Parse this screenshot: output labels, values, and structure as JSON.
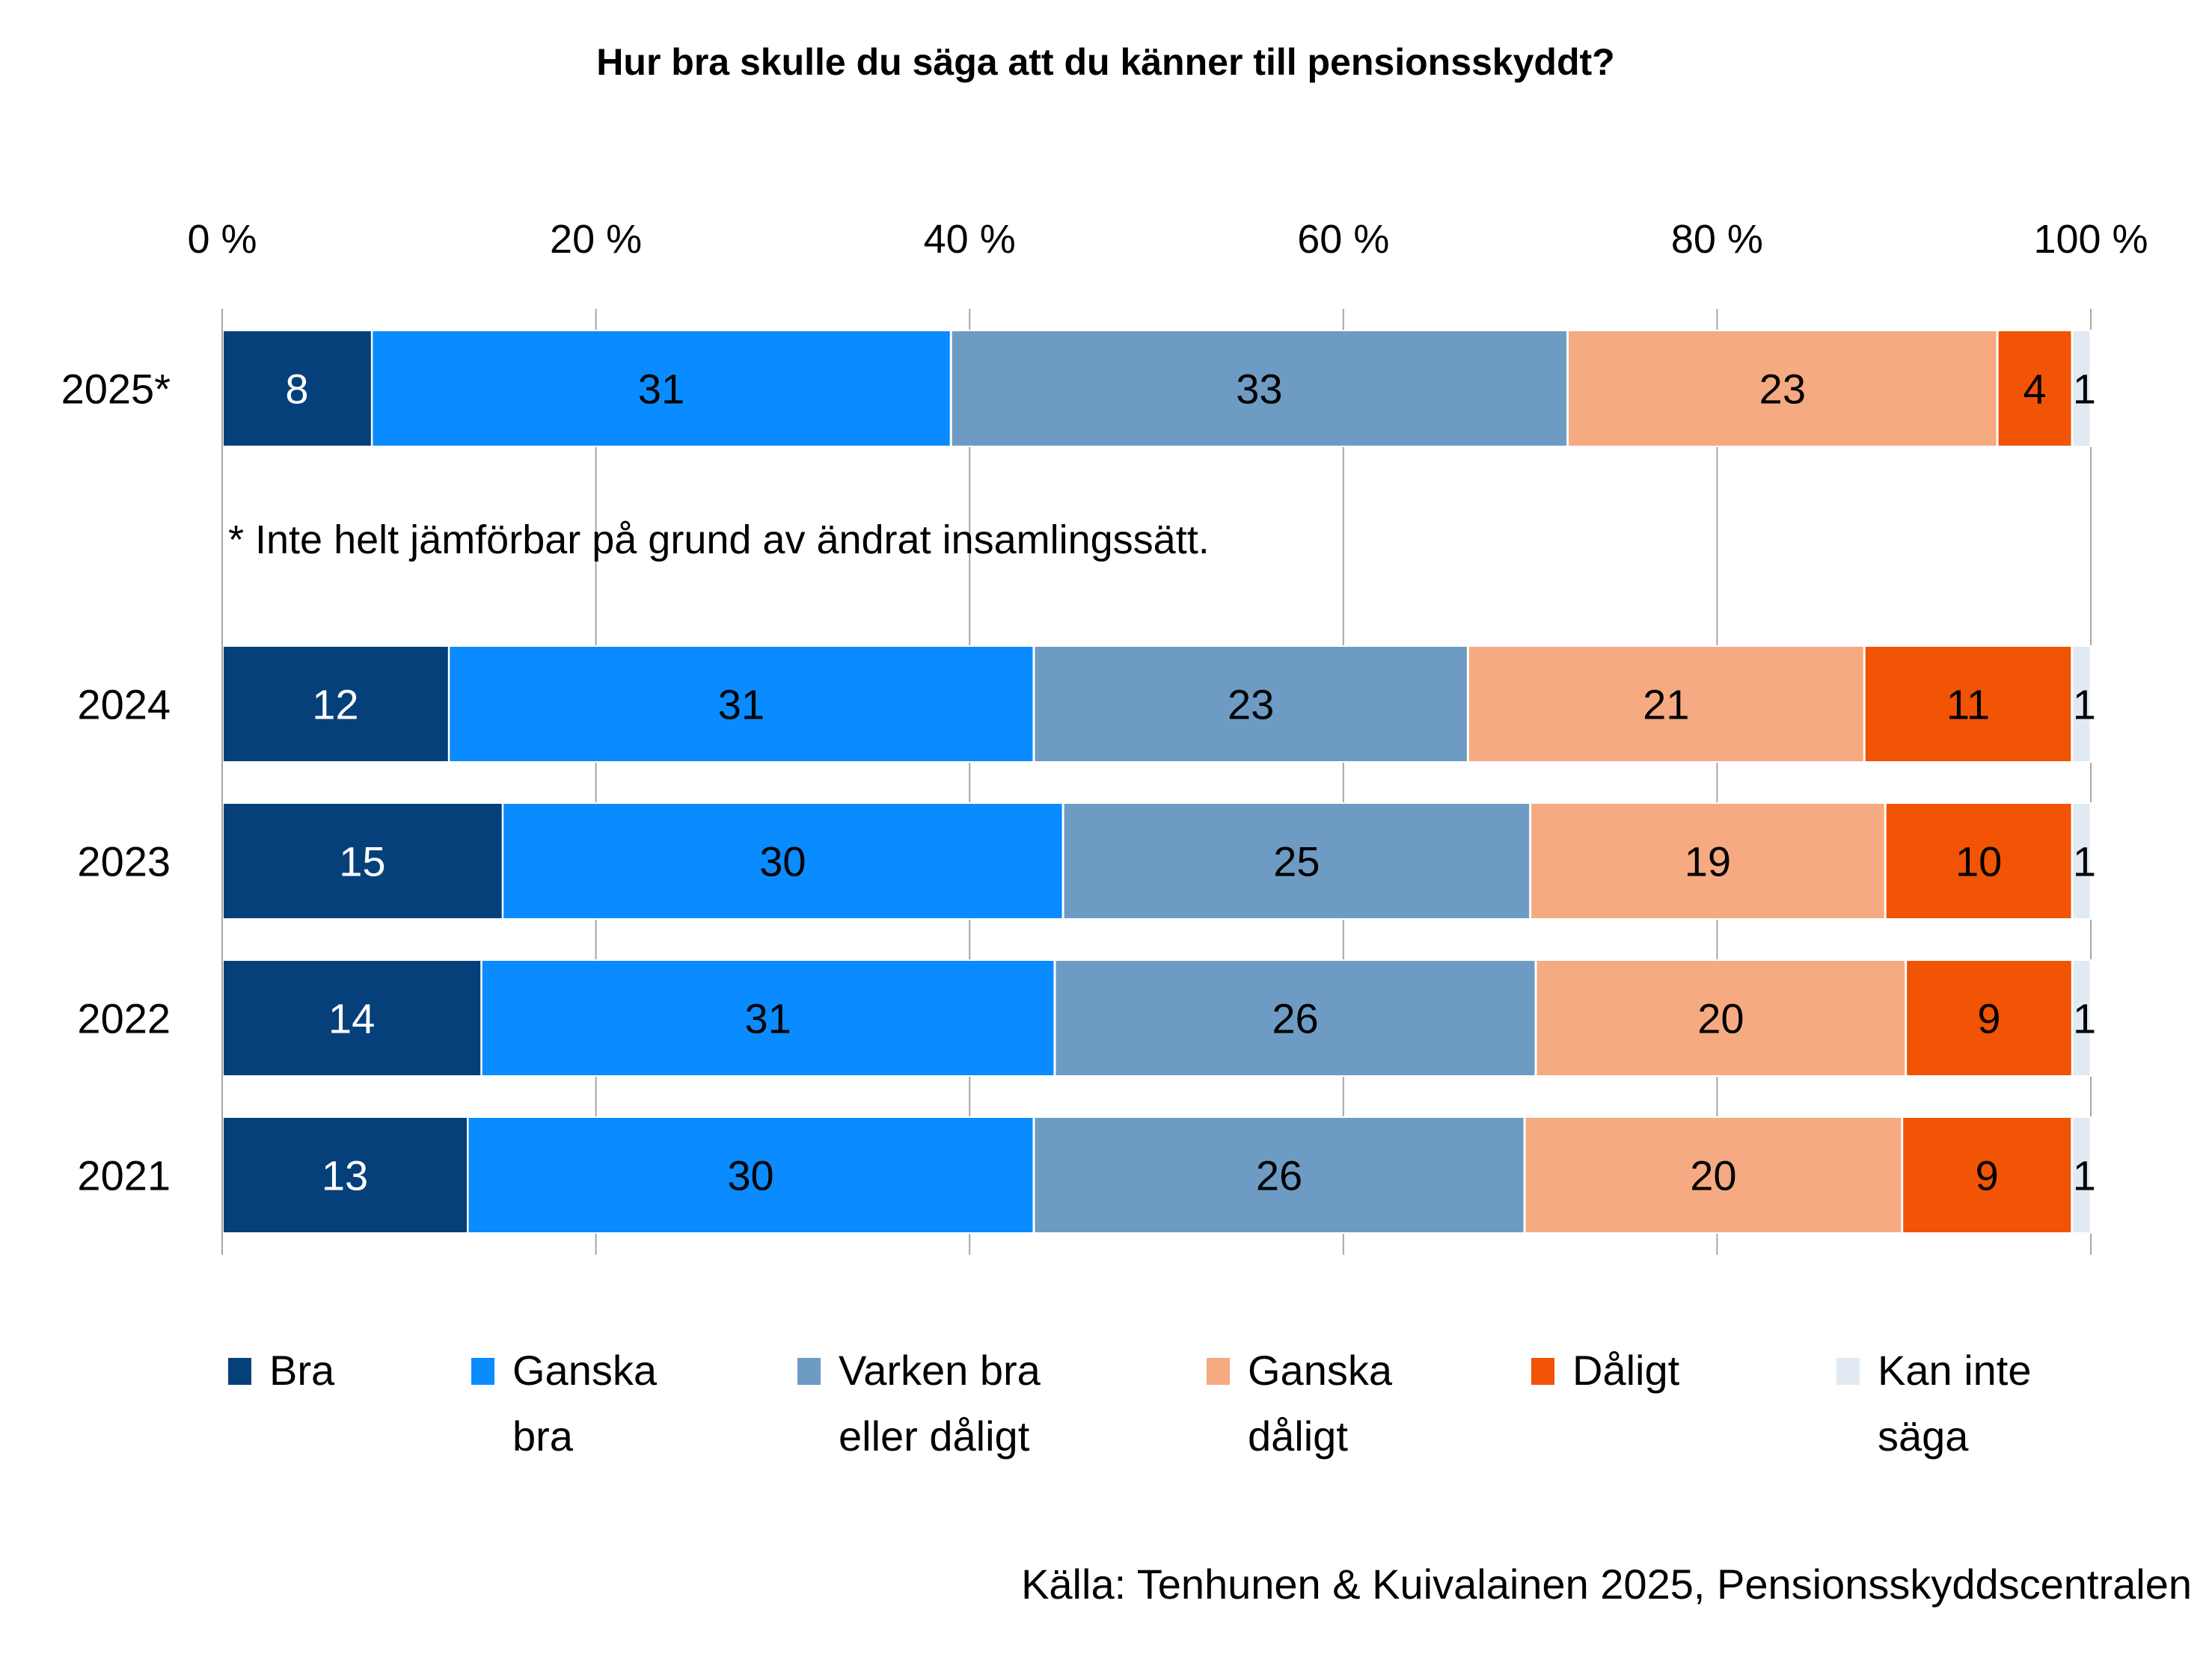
{
  "chart_data": {
    "type": "bar",
    "orientation": "horizontal",
    "stacked": "percent",
    "title": "Hur bra skulle du säga att du känner till pensionsskyddt?",
    "xlabel": "",
    "ylabel": "",
    "xlim": [
      0,
      100
    ],
    "x_ticks": [
      "0 %",
      "20 %",
      "40 %",
      "60 %",
      "80 %",
      "100 %"
    ],
    "x_tick_values": [
      0,
      20,
      40,
      60,
      80,
      100
    ],
    "x_axis_position": "top",
    "grid": true,
    "categories": [
      "2025*",
      "2024",
      "2023",
      "2022",
      "2021"
    ],
    "series": [
      {
        "name": "Bra",
        "color": "#06407A",
        "label_color": "#FFFFFF",
        "values": [
          8,
          12,
          15,
          14,
          13
        ]
      },
      {
        "name": "Ganska bra",
        "color": "#0A8BFF",
        "label_color": "#000000",
        "values": [
          31,
          31,
          30,
          31,
          30
        ]
      },
      {
        "name": "Varken bra eller dåligt",
        "color": "#6D9BC3",
        "label_color": "#000000",
        "values": [
          33,
          23,
          25,
          26,
          26
        ]
      },
      {
        "name": "Ganska dåligt",
        "color": "#F5AA82",
        "label_color": "#000000",
        "values": [
          23,
          21,
          19,
          20,
          20
        ]
      },
      {
        "name": "Dåligt",
        "color": "#F05404",
        "label_color": "#000000",
        "values": [
          4,
          11,
          10,
          9,
          9
        ]
      },
      {
        "name": "Kan inte säga",
        "color": "#E1E9F2",
        "label_color": "#000000",
        "values": [
          1,
          1,
          1,
          1,
          1
        ]
      }
    ],
    "legend": {
      "placement": "bottom",
      "entries": [
        {
          "lines": [
            "Bra"
          ]
        },
        {
          "lines": [
            "Ganska",
            "bra"
          ]
        },
        {
          "lines": [
            "Varken bra",
            "eller dåligt"
          ]
        },
        {
          "lines": [
            "Ganska",
            "dåligt"
          ]
        },
        {
          "lines": [
            "Dåligt"
          ]
        },
        {
          "lines": [
            "Kan inte",
            "säga"
          ]
        }
      ]
    },
    "annotations": [
      {
        "text": "* Inte helt jämförbar på grund av ändrat insamlingssätt.",
        "position": "between 2025* and 2024"
      }
    ],
    "source": "Källa: Tenhunen & Kuivalainen 2025, Pensionsskyddscentralen"
  }
}
